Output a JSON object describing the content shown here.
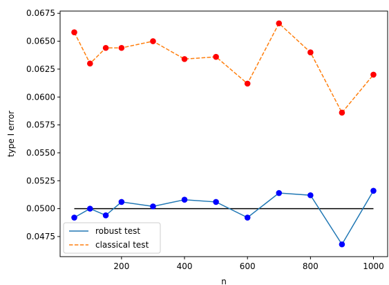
{
  "chart_data": {
    "type": "line",
    "xlabel": "n",
    "ylabel": "type I error",
    "xlim": [
      5,
      1045
    ],
    "ylim": [
      0.0457,
      0.0677
    ],
    "x_ticks": [
      200,
      400,
      600,
      800,
      1000
    ],
    "y_ticks": [
      0.0475,
      0.05,
      0.0525,
      0.055,
      0.0575,
      0.06,
      0.0625,
      0.065,
      0.0675
    ],
    "y_tick_labels": [
      "0.0475",
      "0.0500",
      "0.0525",
      "0.0550",
      "0.0575",
      "0.0600",
      "0.0625",
      "0.0650",
      "0.0675"
    ],
    "x": [
      50,
      100,
      150,
      200,
      300,
      400,
      500,
      600,
      700,
      800,
      900,
      1000
    ],
    "series": [
      {
        "name": "robust test",
        "values": [
          0.0492,
          0.05,
          0.0494,
          0.0506,
          0.0502,
          0.0508,
          0.0506,
          0.0492,
          0.0514,
          0.0512,
          0.0468,
          0.0516
        ],
        "line_color": "#1f77b4",
        "marker_color": "#0000ff",
        "dash": "solid"
      },
      {
        "name": "classical test",
        "values": [
          0.0658,
          0.063,
          0.0644,
          0.0644,
          0.065,
          0.0634,
          0.0636,
          0.0612,
          0.0666,
          0.064,
          0.0586,
          0.062
        ],
        "line_color": "#ff7f0e",
        "marker_color": "#ff0000",
        "dash": "dashed"
      }
    ],
    "reference_line": {
      "y": 0.05,
      "x_range": [
        50,
        1000
      ],
      "color": "#000000"
    },
    "legend": {
      "placement": "lower-left"
    },
    "grid": false
  }
}
